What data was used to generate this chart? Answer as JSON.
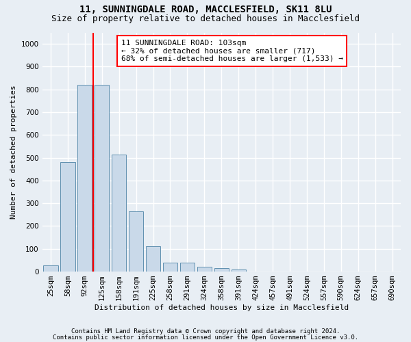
{
  "title1": "11, SUNNINGDALE ROAD, MACCLESFIELD, SK11 8LU",
  "title2": "Size of property relative to detached houses in Macclesfield",
  "xlabel": "Distribution of detached houses by size in Macclesfield",
  "ylabel": "Number of detached properties",
  "footnote1": "Contains HM Land Registry data © Crown copyright and database right 2024.",
  "footnote2": "Contains public sector information licensed under the Open Government Licence v3.0.",
  "bar_labels": [
    "25sqm",
    "58sqm",
    "92sqm",
    "125sqm",
    "158sqm",
    "191sqm",
    "225sqm",
    "258sqm",
    "291sqm",
    "324sqm",
    "358sqm",
    "391sqm",
    "424sqm",
    "457sqm",
    "491sqm",
    "524sqm",
    "557sqm",
    "590sqm",
    "624sqm",
    "657sqm",
    "690sqm"
  ],
  "bar_values": [
    28,
    480,
    820,
    820,
    515,
    265,
    110,
    38,
    38,
    20,
    15,
    8,
    0,
    0,
    0,
    0,
    0,
    0,
    0,
    0,
    0
  ],
  "bar_color": "#c9d9e9",
  "bar_edge_color": "#6090b0",
  "vline_x": 2.5,
  "vline_color": "red",
  "annotation_text": "11 SUNNINGDALE ROAD: 103sqm\n← 32% of detached houses are smaller (717)\n68% of semi-detached houses are larger (1,533) →",
  "annotation_box_color": "white",
  "annotation_box_edge": "red",
  "ylim": [
    0,
    1050
  ],
  "yticks": [
    0,
    100,
    200,
    300,
    400,
    500,
    600,
    700,
    800,
    900,
    1000
  ],
  "background_color": "#e8eef4",
  "grid_color": "white",
  "title1_fontsize": 10,
  "title2_fontsize": 9,
  "axis_label_fontsize": 8,
  "tick_fontsize": 7.5,
  "annotation_fontsize": 8,
  "footnote_fontsize": 6.5
}
